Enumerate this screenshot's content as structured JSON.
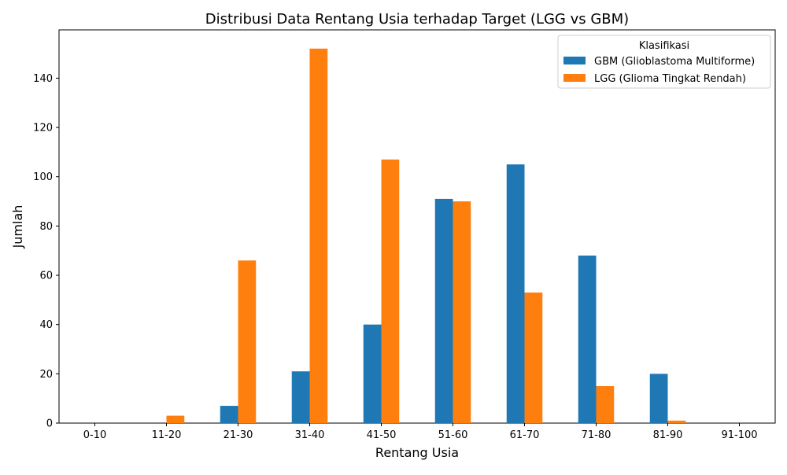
{
  "chart_data": {
    "type": "bar",
    "title": "Distribusi Data Rentang Usia terhadap Target (LGG vs GBM)",
    "xlabel": "Rentang Usia",
    "ylabel": "Jumlah",
    "categories": [
      "0-10",
      "11-20",
      "21-30",
      "31-40",
      "41-50",
      "51-60",
      "61-70",
      "71-80",
      "81-90",
      "91-100"
    ],
    "series": [
      {
        "name": "GBM (Glioblastoma Multiforme)",
        "color": "#1f77b4",
        "values": [
          0,
          0,
          7,
          21,
          40,
          91,
          105,
          68,
          20,
          0
        ]
      },
      {
        "name": "LGG (Glioma Tingkat Rendah)",
        "color": "#ff7f0e",
        "values": [
          0,
          3,
          66,
          152,
          107,
          90,
          53,
          15,
          1,
          0
        ]
      }
    ],
    "ylim": [
      0,
      159.6
    ],
    "yticks": [
      0,
      20,
      40,
      60,
      80,
      100,
      120,
      140
    ],
    "grid": false,
    "legend": {
      "title": "Klasifikasi",
      "position": "top-right"
    }
  }
}
